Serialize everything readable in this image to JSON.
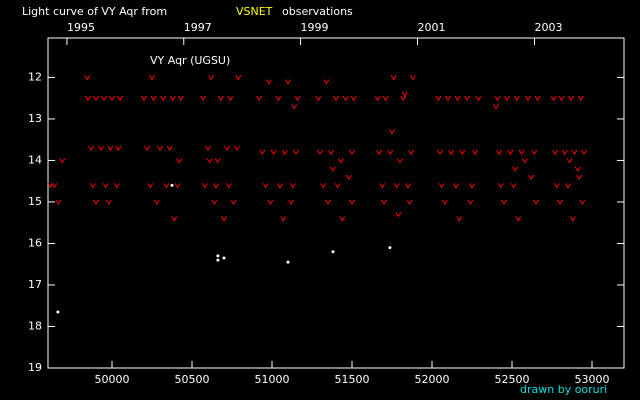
{
  "chart_data": {
    "type": "scatter",
    "title_prefix": "Light curve of VY Aqr from",
    "title_highlight": "VSNET",
    "title_suffix": "observations",
    "annotation": "VY Aqr (UGSU)",
    "credit": "drawn by ooruri",
    "xlim": [
      49600,
      53200
    ],
    "ylim": [
      19,
      11.05
    ],
    "xticks": [
      50000,
      50500,
      51000,
      51500,
      52000,
      52500,
      53000
    ],
    "yticks": [
      12,
      13,
      14,
      15,
      16,
      17,
      18,
      19
    ],
    "top_xticks": [
      {
        "value": 49718.5,
        "label": "1995"
      },
      {
        "value": 50448.5,
        "label": "1997"
      },
      {
        "value": 51178.5,
        "label": "1999"
      },
      {
        "value": 51909.5,
        "label": "2001"
      },
      {
        "value": 52640.5,
        "label": "2003"
      }
    ],
    "series": [
      {
        "marker": "v",
        "color": "#ff0000",
        "x": [
          49615,
          49640,
          49665,
          49690,
          49850,
          49900,
          49950,
          50000,
          50050,
          49870,
          49930,
          49990,
          50040,
          49880,
          49960,
          50030,
          49900,
          49980,
          49845,
          50200,
          50260,
          50320,
          50380,
          50430,
          50220,
          50300,
          50360,
          50420,
          50240,
          50340,
          50410,
          50280,
          50390,
          50250,
          50570,
          50620,
          50680,
          50740,
          50790,
          50600,
          50660,
          50720,
          50780,
          50580,
          50650,
          50730,
          50640,
          50700,
          50760,
          50610,
          50920,
          50980,
          51040,
          51100,
          51160,
          50940,
          51010,
          51080,
          51150,
          50960,
          51050,
          51130,
          50990,
          51070,
          51120,
          51140,
          51290,
          51340,
          51400,
          51460,
          51510,
          51300,
          51370,
          51430,
          51500,
          51320,
          51410,
          51480,
          51350,
          51440,
          51500,
          51380,
          51660,
          51710,
          51760,
          51820,
          51880,
          51670,
          51740,
          51800,
          51870,
          51690,
          51780,
          51850,
          51700,
          51790,
          51860,
          51750,
          51830,
          52040,
          52100,
          52160,
          52220,
          52290,
          52050,
          52120,
          52190,
          52270,
          52060,
          52150,
          52250,
          52080,
          52170,
          52240,
          52410,
          52470,
          52530,
          52600,
          52660,
          52420,
          52490,
          52560,
          52640,
          52430,
          52510,
          52620,
          52450,
          52540,
          52650,
          52400,
          52580,
          52520,
          52760,
          52810,
          52870,
          52930,
          52770,
          52830,
          52890,
          52950,
          52780,
          52850,
          52920,
          52800,
          52880,
          52940,
          52860,
          52910
        ],
        "values": [
          14.6,
          14.6,
          15.0,
          14.0,
          12.5,
          12.5,
          12.5,
          12.5,
          12.5,
          13.7,
          13.7,
          13.7,
          13.7,
          14.6,
          14.6,
          14.6,
          15.0,
          15.0,
          12.0,
          12.5,
          12.5,
          12.5,
          12.5,
          12.5,
          13.7,
          13.7,
          13.7,
          14.0,
          14.6,
          14.6,
          14.6,
          15.0,
          15.4,
          12.0,
          12.5,
          12.0,
          12.5,
          12.5,
          12.0,
          13.7,
          14.0,
          13.7,
          13.7,
          14.6,
          14.6,
          14.6,
          15.0,
          15.4,
          15.0,
          14.0,
          12.5,
          12.1,
          12.5,
          12.1,
          12.5,
          13.8,
          13.8,
          13.8,
          13.8,
          14.6,
          14.6,
          14.6,
          15.0,
          15.4,
          15.0,
          12.7,
          12.5,
          12.1,
          12.5,
          12.5,
          12.5,
          13.8,
          13.8,
          14.0,
          13.8,
          14.6,
          14.6,
          14.4,
          15.0,
          15.4,
          15.0,
          14.2,
          12.5,
          12.5,
          12.0,
          12.5,
          12.0,
          13.8,
          13.8,
          14.0,
          13.8,
          14.6,
          14.6,
          14.6,
          15.0,
          15.3,
          15.0,
          13.3,
          12.4,
          12.5,
          12.5,
          12.5,
          12.5,
          12.5,
          13.8,
          13.8,
          13.8,
          13.8,
          14.6,
          14.6,
          14.6,
          15.0,
          15.4,
          15.0,
          12.5,
          12.5,
          12.5,
          12.5,
          12.5,
          13.8,
          13.8,
          13.8,
          13.8,
          14.6,
          14.6,
          14.4,
          15.0,
          15.4,
          15.0,
          12.7,
          14.0,
          14.2,
          12.5,
          12.5,
          12.5,
          12.5,
          13.8,
          13.8,
          13.8,
          13.8,
          14.6,
          14.6,
          14.4,
          15.0,
          15.4,
          15.0,
          14.0,
          14.2
        ]
      },
      {
        "marker": "dot",
        "color": "#ffffff",
        "x": [
          49662,
          50375,
          50662,
          50662,
          50700,
          51100,
          51381,
          51737
        ],
        "values": [
          17.65,
          14.6,
          16.3,
          16.4,
          16.35,
          16.45,
          16.2,
          16.1
        ]
      }
    ]
  }
}
